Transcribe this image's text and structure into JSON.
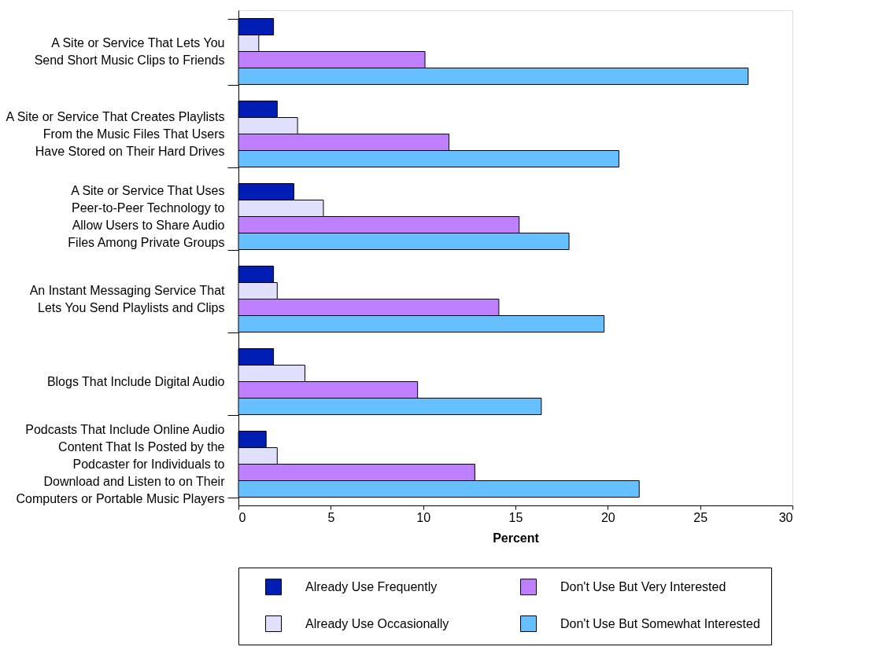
{
  "chart_data": {
    "type": "bar",
    "orientation": "horizontal",
    "xlabel": "Percent",
    "categories": [
      "A Site or Service That Lets You\nSend Short Music Clips to Friends",
      "A Site or Service That Creates Playlists\nFrom the Music Files That Users\nHave Stored on Their Hard Drives",
      "A Site or Service That Uses\nPeer-to-Peer Technology to\nAllow Users to Share Audio\nFiles Among Private Groups",
      "An Instant Messaging Service That\nLets You Send Playlists and Clips",
      "Blogs That Include Digital Audio",
      "Podcasts That Include Online Audio\nContent That Is Posted by the\nPodcaster for Individuals to\nDownload and Listen to on Their\nComputers or Portable Music Players"
    ],
    "series": [
      {
        "name": "Already Use Frequently",
        "color": "#001eb4",
        "values": [
          1.9,
          2.1,
          3.0,
          1.9,
          1.9,
          1.5
        ]
      },
      {
        "name": "Already Use Occasionally",
        "color": "#e0e0fc",
        "values": [
          1.1,
          3.2,
          4.6,
          2.1,
          3.6,
          2.1
        ]
      },
      {
        "name": "Don't Use But Very Interested",
        "color": "#bf80ff",
        "values": [
          10.1,
          11.4,
          15.2,
          14.1,
          9.7,
          12.8
        ]
      },
      {
        "name": "Don't Use But Somewhat Interested",
        "color": "#66bfff",
        "values": [
          27.6,
          20.6,
          17.9,
          19.8,
          16.4,
          21.7
        ]
      }
    ],
    "xlim": [
      0,
      30
    ],
    "xticks": [
      0,
      5,
      10,
      15,
      20,
      25,
      30
    ],
    "grid": false,
    "legend": "bottom"
  }
}
